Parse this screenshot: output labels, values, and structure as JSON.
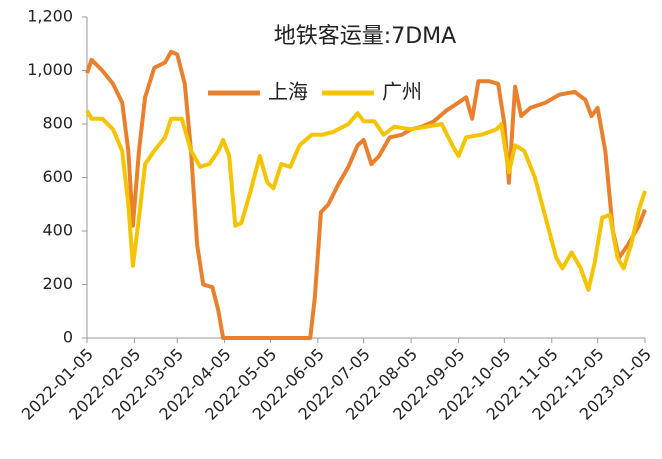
{
  "chart_data": {
    "type": "line",
    "title": "地铁客运量:7DMA",
    "xlim": [
      "2022-01-05",
      "2023-01-05"
    ],
    "xticks": [
      "2022-01-05",
      "2022-02-05",
      "2022-03-05",
      "2022-04-05",
      "2022-05-05",
      "2022-06-05",
      "2022-07-05",
      "2022-08-05",
      "2022-09-05",
      "2022-10-05",
      "2022-11-05",
      "2022-12-05",
      "2023-01-05"
    ],
    "ylim": [
      0,
      1200
    ],
    "yticks": [
      0,
      200,
      400,
      600,
      800,
      {
        "value": 1000,
        "label": "1,000"
      },
      {
        "value": 1200,
        "label": "1,200"
      }
    ],
    "legend": "top",
    "series": [
      {
        "name": "上海",
        "color": "#e8802e",
        "x": [
          "2022-01-05",
          "2022-01-08",
          "2022-01-15",
          "2022-01-22",
          "2022-01-28",
          "2022-02-01",
          "2022-02-04",
          "2022-02-08",
          "2022-02-12",
          "2022-02-18",
          "2022-02-25",
          "2022-03-01",
          "2022-03-05",
          "2022-03-10",
          "2022-03-14",
          "2022-03-18",
          "2022-03-22",
          "2022-03-28",
          "2022-04-01",
          "2022-04-04",
          "2022-05-31",
          "2022-06-03",
          "2022-06-07",
          "2022-06-12",
          "2022-06-18",
          "2022-06-25",
          "2022-07-01",
          "2022-07-05",
          "2022-07-10",
          "2022-07-15",
          "2022-07-22",
          "2022-07-30",
          "2022-08-05",
          "2022-08-12",
          "2022-08-20",
          "2022-08-28",
          "2022-09-05",
          "2022-09-10",
          "2022-09-14",
          "2022-09-18",
          "2022-09-25",
          "2022-10-01",
          "2022-10-05",
          "2022-10-08",
          "2022-10-12",
          "2022-10-16",
          "2022-10-22",
          "2022-11-01",
          "2022-11-10",
          "2022-11-20",
          "2022-11-27",
          "2022-12-01",
          "2022-12-05",
          "2022-12-10",
          "2022-12-15",
          "2022-12-19",
          "2022-12-25",
          "2023-01-01",
          "2023-01-05"
        ],
        "values": [
          990,
          1040,
          1000,
          950,
          880,
          700,
          420,
          700,
          900,
          1010,
          1030,
          1070,
          1060,
          950,
          700,
          350,
          200,
          190,
          100,
          0,
          0,
          150,
          470,
          500,
          570,
          640,
          720,
          740,
          650,
          680,
          750,
          760,
          780,
          790,
          810,
          850,
          880,
          900,
          820,
          960,
          960,
          950,
          800,
          580,
          940,
          830,
          860,
          880,
          910,
          920,
          890,
          830,
          860,
          700,
          400,
          300,
          350,
          420,
          480
        ]
      },
      {
        "name": "广州",
        "color": "#f5c400",
        "x": [
          "2022-01-05",
          "2022-01-08",
          "2022-01-15",
          "2022-01-22",
          "2022-01-28",
          "2022-02-01",
          "2022-02-04",
          "2022-02-08",
          "2022-02-12",
          "2022-02-18",
          "2022-02-25",
          "2022-03-01",
          "2022-03-08",
          "2022-03-14",
          "2022-03-20",
          "2022-03-26",
          "2022-04-01",
          "2022-04-04",
          "2022-04-08",
          "2022-04-12",
          "2022-04-16",
          "2022-04-22",
          "2022-04-28",
          "2022-05-03",
          "2022-05-07",
          "2022-05-12",
          "2022-05-18",
          "2022-05-24",
          "2022-06-01",
          "2022-06-08",
          "2022-06-15",
          "2022-06-25",
          "2022-07-01",
          "2022-07-05",
          "2022-07-12",
          "2022-07-18",
          "2022-07-25",
          "2022-08-05",
          "2022-08-15",
          "2022-08-25",
          "2022-09-01",
          "2022-09-05",
          "2022-09-10",
          "2022-09-20",
          "2022-09-30",
          "2022-10-03",
          "2022-10-08",
          "2022-10-12",
          "2022-10-18",
          "2022-10-25",
          "2022-11-01",
          "2022-11-08",
          "2022-11-12",
          "2022-11-18",
          "2022-11-24",
          "2022-11-29",
          "2022-12-03",
          "2022-12-08",
          "2022-12-13",
          "2022-12-18",
          "2022-12-22",
          "2022-12-27",
          "2023-01-01",
          "2023-01-05"
        ],
        "values": [
          850,
          820,
          820,
          780,
          700,
          500,
          270,
          450,
          650,
          700,
          750,
          820,
          820,
          700,
          640,
          650,
          700,
          740,
          680,
          420,
          430,
          550,
          680,
          580,
          560,
          650,
          640,
          720,
          760,
          760,
          770,
          800,
          840,
          810,
          810,
          760,
          790,
          780,
          790,
          800,
          720,
          680,
          750,
          760,
          780,
          800,
          620,
          720,
          700,
          600,
          450,
          300,
          260,
          320,
          260,
          180,
          280,
          450,
          460,
          300,
          260,
          350,
          480,
          550
        ]
      }
    ]
  }
}
